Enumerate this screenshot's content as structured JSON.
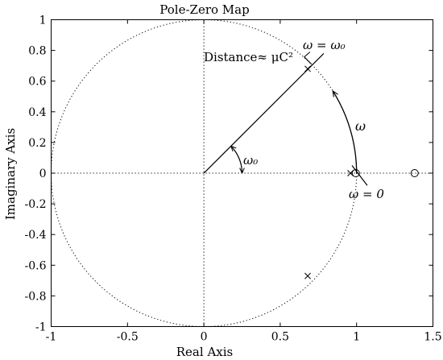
{
  "chart_data": {
    "type": "scatter",
    "title": "Pole-Zero Map",
    "xlabel": "Real Axis",
    "ylabel": "Imaginary Axis",
    "xlim": [
      -1,
      1.5
    ],
    "ylim": [
      -1,
      1
    ],
    "xticks": [
      -1,
      -0.5,
      0,
      0.5,
      1,
      1.5
    ],
    "xtick_labels": [
      "-1",
      "-0.5",
      "0",
      "0.5",
      "1",
      "1.5"
    ],
    "yticks": [
      -1,
      -0.8,
      -0.6,
      -0.4,
      -0.2,
      0,
      0.2,
      0.4,
      0.6,
      0.8,
      1
    ],
    "ytick_labels": [
      "-1",
      "-0.8",
      "-0.6",
      "-0.4",
      "-0.2",
      "0",
      "0.2",
      "0.4",
      "0.6",
      "0.8",
      "1"
    ],
    "grid": false,
    "unit_circle": true,
    "poles": [
      {
        "x": 0.68,
        "y": 0.68
      },
      {
        "x": 0.96,
        "y": 0.0
      },
      {
        "x": 0.68,
        "y": -0.67
      }
    ],
    "zeros": [
      {
        "x": 0.995,
        "y": 0.0
      },
      {
        "x": 1.38,
        "y": 0.0
      }
    ],
    "annotations": {
      "distance": "Distance≈ μC²",
      "omega_eq_omega0": "ω = ω₀",
      "omega": "ω",
      "omega0": "ω₀",
      "omega_eq_zero": "ω = 0"
    }
  }
}
